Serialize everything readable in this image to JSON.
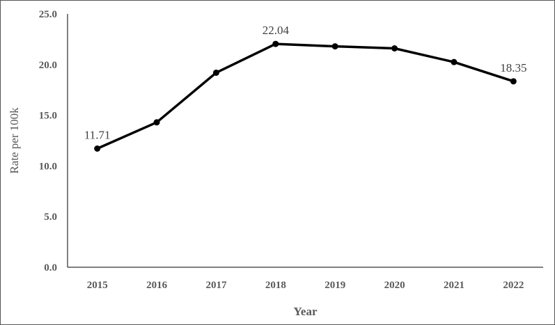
{
  "chart_data": {
    "type": "line",
    "title": "",
    "xlabel": "Year",
    "ylabel": "Rate per 100k",
    "x": [
      "2015",
      "2016",
      "2017",
      "2018",
      "2019",
      "2020",
      "2021",
      "2022"
    ],
    "series": [
      {
        "values": [
          11.71,
          14.3,
          19.2,
          22.04,
          21.8,
          21.6,
          20.25,
          18.35
        ]
      }
    ],
    "data_labels": {
      "2015": "11.71",
      "2018": "22.04",
      "2022": "18.35"
    },
    "y_ticks": [
      "0.0",
      "5.0",
      "10.0",
      "15.0",
      "20.0",
      "25.0"
    ],
    "ylim": [
      0,
      25
    ],
    "grid": false,
    "legend": "none",
    "line_color": "#000000"
  }
}
